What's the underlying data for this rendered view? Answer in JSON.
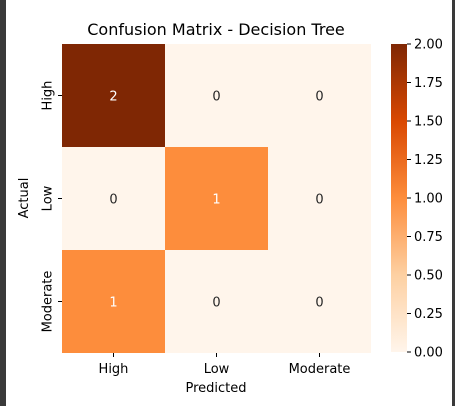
{
  "chart_data": {
    "type": "heatmap",
    "title": "Confusion Matrix - Decision Tree",
    "xlabel": "Predicted",
    "ylabel": "Actual",
    "x_categories": [
      "High",
      "Low",
      "Moderate"
    ],
    "y_categories": [
      "High",
      "Low",
      "Moderate"
    ],
    "values": [
      [
        2,
        0,
        0
      ],
      [
        0,
        1,
        0
      ],
      [
        1,
        0,
        0
      ]
    ],
    "colorbar": {
      "range": [
        0,
        2
      ],
      "ticks": [
        "0.00",
        "0.25",
        "0.50",
        "0.75",
        "1.00",
        "1.25",
        "1.50",
        "1.75",
        "2.00"
      ]
    },
    "colormap": "Oranges",
    "annotations": true
  }
}
